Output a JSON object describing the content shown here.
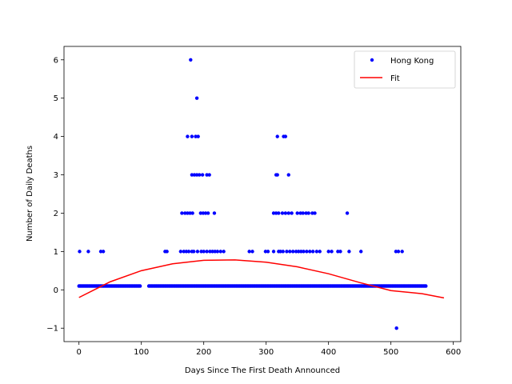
{
  "chart_data": {
    "type": "scatter",
    "xlabel": "Days Since The First Death Announced",
    "ylabel": "Number of Daily Deaths",
    "xlim": [
      -24,
      612
    ],
    "ylim": [
      -1.35,
      6.35
    ],
    "x_ticks": [
      0,
      100,
      200,
      300,
      400,
      500,
      600
    ],
    "y_ticks": [
      -1,
      0,
      1,
      2,
      3,
      4,
      5,
      6
    ],
    "legend_position": "top-right",
    "grid": false,
    "series": [
      {
        "name": "Hong Kong",
        "style": "points",
        "color": "#0000ff",
        "points": [
          [
            1,
            1
          ],
          [
            15,
            1
          ],
          [
            35,
            1
          ],
          [
            39,
            1
          ],
          [
            138,
            1
          ],
          [
            141,
            1
          ],
          [
            163,
            1
          ],
          [
            168,
            1
          ],
          [
            172,
            1
          ],
          [
            176,
            1
          ],
          [
            181,
            1
          ],
          [
            184,
            1
          ],
          [
            190,
            1
          ],
          [
            196,
            1
          ],
          [
            200,
            1
          ],
          [
            205,
            1
          ],
          [
            210,
            1
          ],
          [
            214,
            1
          ],
          [
            218,
            1
          ],
          [
            222,
            1
          ],
          [
            227,
            1
          ],
          [
            232,
            1
          ],
          [
            273,
            1
          ],
          [
            278,
            1
          ],
          [
            299,
            1
          ],
          [
            303,
            1
          ],
          [
            312,
            1
          ],
          [
            320,
            1
          ],
          [
            323,
            1
          ],
          [
            327,
            1
          ],
          [
            333,
            1
          ],
          [
            338,
            1
          ],
          [
            343,
            1
          ],
          [
            348,
            1
          ],
          [
            352,
            1
          ],
          [
            356,
            1
          ],
          [
            360,
            1
          ],
          [
            365,
            1
          ],
          [
            370,
            1
          ],
          [
            375,
            1
          ],
          [
            381,
            1
          ],
          [
            386,
            1
          ],
          [
            400,
            1
          ],
          [
            405,
            1
          ],
          [
            415,
            1
          ],
          [
            419,
            1
          ],
          [
            433,
            1
          ],
          [
            452,
            1
          ],
          [
            508,
            1
          ],
          [
            512,
            1
          ],
          [
            518,
            1
          ],
          [
            165,
            2
          ],
          [
            170,
            2
          ],
          [
            174,
            2
          ],
          [
            178,
            2
          ],
          [
            182,
            2
          ],
          [
            195,
            2
          ],
          [
            199,
            2
          ],
          [
            203,
            2
          ],
          [
            207,
            2
          ],
          [
            217,
            2
          ],
          [
            312,
            2
          ],
          [
            316,
            2
          ],
          [
            320,
            2
          ],
          [
            326,
            2
          ],
          [
            331,
            2
          ],
          [
            336,
            2
          ],
          [
            341,
            2
          ],
          [
            350,
            2
          ],
          [
            355,
            2
          ],
          [
            359,
            2
          ],
          [
            364,
            2
          ],
          [
            368,
            2
          ],
          [
            374,
            2
          ],
          [
            378,
            2
          ],
          [
            430,
            2
          ],
          [
            181,
            3
          ],
          [
            185,
            3
          ],
          [
            189,
            3
          ],
          [
            193,
            3
          ],
          [
            198,
            3
          ],
          [
            205,
            3
          ],
          [
            209,
            3
          ],
          [
            316,
            3
          ],
          [
            318,
            3
          ],
          [
            336,
            3
          ],
          [
            174,
            4
          ],
          [
            181,
            4
          ],
          [
            187,
            4
          ],
          [
            191,
            4
          ],
          [
            318,
            4
          ],
          [
            328,
            4
          ],
          [
            331,
            4
          ],
          [
            189,
            5
          ],
          [
            179,
            6
          ],
          [
            509,
            -1
          ]
        ]
      },
      {
        "name": "Fit",
        "style": "line",
        "color": "#ff0000",
        "points": [
          [
            0,
            -0.2
          ],
          [
            50,
            0.21
          ],
          [
            100,
            0.5
          ],
          [
            150,
            0.68
          ],
          [
            200,
            0.77
          ],
          [
            250,
            0.78
          ],
          [
            300,
            0.72
          ],
          [
            350,
            0.6
          ],
          [
            400,
            0.42
          ],
          [
            450,
            0.19
          ],
          [
            500,
            -0.02
          ],
          [
            550,
            -0.1
          ],
          [
            585,
            -0.21
          ]
        ]
      }
    ]
  }
}
